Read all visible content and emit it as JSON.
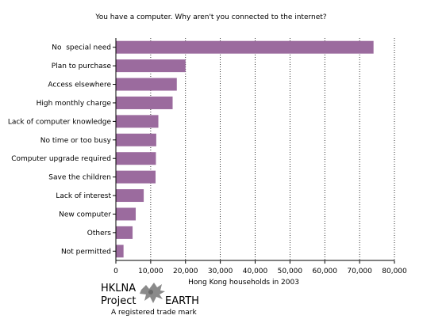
{
  "chart_data": {
    "type": "bar",
    "orientation": "horizontal",
    "title": "You have a computer. Why aren't you connected to the internet?",
    "xlabel": "Hong Kong households in 2003",
    "ylabel": "",
    "xlim": [
      0,
      80000
    ],
    "x_ticks": [
      0,
      10000,
      20000,
      30000,
      40000,
      50000,
      60000,
      70000,
      80000
    ],
    "x_tick_labels": [
      "0",
      "10,000",
      "20,000",
      "30,000",
      "40,000",
      "50,000",
      "60,000",
      "70,000",
      "80,000"
    ],
    "grid": "vertical-dotted",
    "bar_color": "#9b6b9e",
    "categories": [
      "No  special need",
      "Plan to purchase",
      "Access elsewhere",
      "High monthly charge",
      "Lack of computer knowledge",
      "No time or too busy",
      "Computer upgrade required",
      "Save the children",
      "Lack of interest",
      "New computer",
      "Others",
      "Not permitted"
    ],
    "values": [
      74000,
      20000,
      17500,
      16300,
      12200,
      11600,
      11500,
      11400,
      8000,
      5700,
      4800,
      2200
    ]
  },
  "logo": {
    "line1": "HKLNA",
    "line2_left": "Project",
    "line2_right": "EARTH",
    "line3": "A registered trade mark",
    "icon": "earth-splat-icon"
  }
}
